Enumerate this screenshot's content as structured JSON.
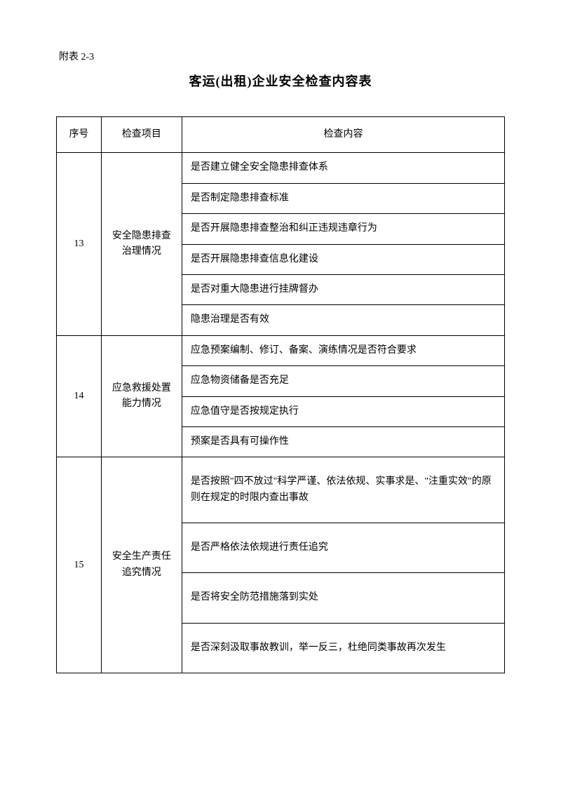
{
  "appendix_label": "附表 2-3",
  "title": "客运(出租)企业安全检查内容表",
  "headers": {
    "seq": "序号",
    "item": "检查项目",
    "content": "检查内容"
  },
  "sections": [
    {
      "seq": "13",
      "item": "安全隐患排查治理情况",
      "contents": [
        "是否建立健全安全隐患排查体系",
        "是否制定隐患排查标准",
        "是否开展隐患排查整治和纠正违规违章行为",
        "是否开展隐患排查信息化建设",
        "是否对重大隐患进行挂牌督办",
        "隐患治理是否有效"
      ],
      "tall": false
    },
    {
      "seq": "14",
      "item": "应急救援处置能力情况",
      "contents": [
        "应急预案编制、修订、备案、演练情况是否符合要求",
        "应急物资储备是否充足",
        "应急值守是否按规定执行",
        "预案是否具有可操作性"
      ],
      "tall": false
    },
    {
      "seq": "15",
      "item": "安全生产责任追究情况",
      "contents": [
        "是否按照\"四不放过\"科学严谨、依法依规、实事求是、\"注重实效\"的原则在规定的时限内查出事故",
        "是否严格依法依规进行责任追究",
        "是否将安全防范措施落到实处",
        "是否深刻汲取事故教训，举一反三，杜绝同类事故再次发生"
      ],
      "tall": true
    }
  ]
}
